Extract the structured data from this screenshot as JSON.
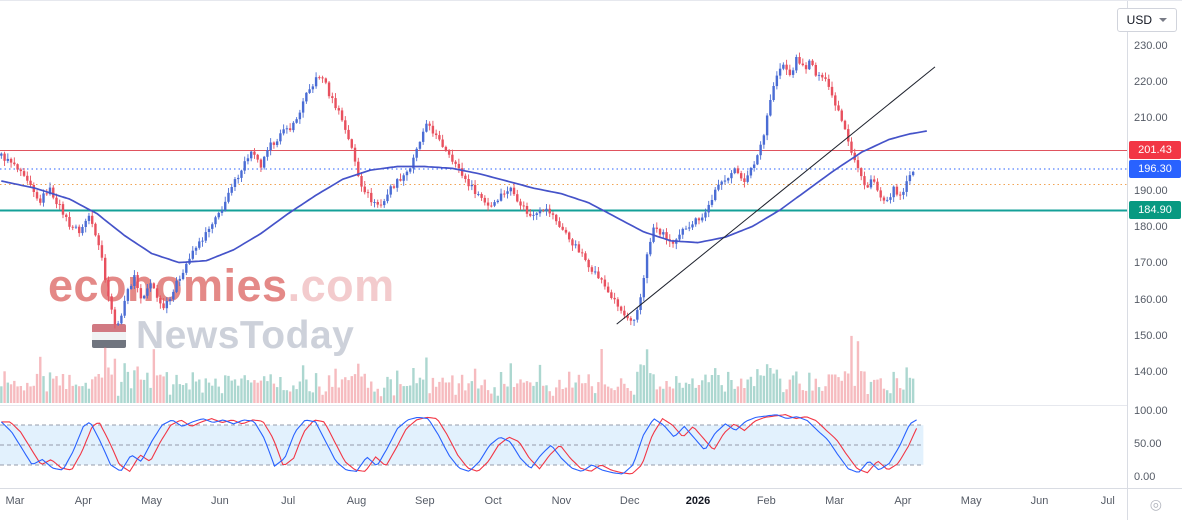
{
  "header": {
    "currency_label": "USD"
  },
  "watermark": {
    "brand": "economies",
    "domain": ".com",
    "subtitle": "NewsToday"
  },
  "price_axis": {
    "badges": [
      {
        "label": "201.43",
        "value": 201.43,
        "color": "#f23645"
      },
      {
        "label": "196.30",
        "value": 196.3,
        "color": "#2962ff"
      },
      {
        "label": "184.90",
        "value": 184.9,
        "color": "#089981"
      }
    ]
  },
  "chart_data": {
    "type": "candlestick",
    "title": "",
    "x_unit": "month_index_from_2025-03",
    "x_axis_labels": [
      "Mar",
      "Apr",
      "May",
      "Jun",
      "Jul",
      "Aug",
      "Sep",
      "Oct",
      "Nov",
      "Dec",
      "2026",
      "Feb",
      "Mar",
      "Apr",
      "May",
      "Jun",
      "Jul"
    ],
    "x_axis_emphasis_index": 10,
    "price_visible_range": [
      132,
      243
    ],
    "price_ticks": [
      {
        "v": 230,
        "label": "230.00"
      },
      {
        "v": 220,
        "label": "220.00"
      },
      {
        "v": 210,
        "label": "210.00"
      },
      {
        "v": 190,
        "label": "190.00"
      },
      {
        "v": 180,
        "label": "180.00"
      },
      {
        "v": 170,
        "label": "170.00"
      },
      {
        "v": 160,
        "label": "160.00"
      },
      {
        "v": 150,
        "label": "150.00"
      },
      {
        "v": 140,
        "label": "140.00"
      }
    ],
    "candles_extent_months": [
      -0.2,
      13.15
    ],
    "last_price": 196.3,
    "candle_up_color": "#4a6cd4",
    "candle_down_color": "#e8505e",
    "close_keypoints": [
      [
        -0.2,
        200
      ],
      [
        0,
        197
      ],
      [
        0.2,
        192
      ],
      [
        0.35,
        187
      ],
      [
        0.5,
        191
      ],
      [
        0.65,
        186
      ],
      [
        0.8,
        181
      ],
      [
        0.95,
        179
      ],
      [
        1.1,
        184
      ],
      [
        1.25,
        174
      ],
      [
        1.4,
        158
      ],
      [
        1.5,
        152
      ],
      [
        1.6,
        160
      ],
      [
        1.75,
        167
      ],
      [
        1.85,
        160
      ],
      [
        2,
        165
      ],
      [
        2.15,
        158
      ],
      [
        2.3,
        162
      ],
      [
        2.5,
        170
      ],
      [
        2.7,
        176
      ],
      [
        2.9,
        181
      ],
      [
        3.1,
        188
      ],
      [
        3.3,
        196
      ],
      [
        3.45,
        201
      ],
      [
        3.6,
        197
      ],
      [
        3.75,
        203
      ],
      [
        3.9,
        206
      ],
      [
        4.1,
        209
      ],
      [
        4.25,
        216
      ],
      [
        4.4,
        221
      ],
      [
        4.5,
        222
      ],
      [
        4.6,
        217
      ],
      [
        4.75,
        212
      ],
      [
        4.9,
        204
      ],
      [
        5.05,
        193
      ],
      [
        5.2,
        188
      ],
      [
        5.35,
        186
      ],
      [
        5.5,
        191
      ],
      [
        5.65,
        194
      ],
      [
        5.8,
        197
      ],
      [
        5.95,
        205
      ],
      [
        6.05,
        209
      ],
      [
        6.2,
        204
      ],
      [
        6.35,
        201
      ],
      [
        6.5,
        196
      ],
      [
        6.65,
        192
      ],
      [
        6.8,
        189
      ],
      [
        6.95,
        186
      ],
      [
        7.1,
        189
      ],
      [
        7.25,
        191
      ],
      [
        7.4,
        187
      ],
      [
        7.55,
        183
      ],
      [
        7.7,
        186
      ],
      [
        7.85,
        184
      ],
      [
        8,
        180
      ],
      [
        8.2,
        175
      ],
      [
        8.4,
        170
      ],
      [
        8.6,
        165
      ],
      [
        8.8,
        159
      ],
      [
        8.95,
        155
      ],
      [
        9.05,
        153
      ],
      [
        9.15,
        160
      ],
      [
        9.25,
        172
      ],
      [
        9.35,
        180
      ],
      [
        9.5,
        178
      ],
      [
        9.65,
        175
      ],
      [
        9.8,
        180
      ],
      [
        9.95,
        182
      ],
      [
        10.1,
        184
      ],
      [
        10.25,
        190
      ],
      [
        10.4,
        194
      ],
      [
        10.55,
        196
      ],
      [
        10.7,
        193
      ],
      [
        10.85,
        199
      ],
      [
        10.95,
        205
      ],
      [
        11.05,
        215
      ],
      [
        11.15,
        222
      ],
      [
        11.25,
        225
      ],
      [
        11.35,
        222
      ],
      [
        11.45,
        227
      ],
      [
        11.55,
        224
      ],
      [
        11.65,
        226
      ],
      [
        11.75,
        221
      ],
      [
        11.85,
        223
      ],
      [
        11.95,
        217
      ],
      [
        12.05,
        213
      ],
      [
        12.15,
        208
      ],
      [
        12.25,
        201
      ],
      [
        12.35,
        196
      ],
      [
        12.45,
        191
      ],
      [
        12.55,
        194
      ],
      [
        12.65,
        189
      ],
      [
        12.75,
        186
      ],
      [
        12.85,
        191
      ],
      [
        12.95,
        188
      ],
      [
        13.05,
        192
      ],
      [
        13.15,
        196.3
      ]
    ],
    "ma_line": {
      "name": "moving-average",
      "color": "#4553c9",
      "points": [
        [
          -0.2,
          193
        ],
        [
          0.3,
          191
        ],
        [
          0.8,
          188
        ],
        [
          1.2,
          184
        ],
        [
          1.6,
          178
        ],
        [
          2,
          173
        ],
        [
          2.4,
          170.5
        ],
        [
          2.8,
          171
        ],
        [
          3.2,
          174
        ],
        [
          3.6,
          178.5
        ],
        [
          4,
          184
        ],
        [
          4.4,
          189
        ],
        [
          4.8,
          193.5
        ],
        [
          5.2,
          196
        ],
        [
          5.6,
          197
        ],
        [
          6,
          197
        ],
        [
          6.4,
          196.5
        ],
        [
          6.8,
          195
        ],
        [
          7.2,
          193
        ],
        [
          7.6,
          191
        ],
        [
          8,
          189.5
        ],
        [
          8.4,
          187
        ],
        [
          8.8,
          183
        ],
        [
          9.2,
          179
        ],
        [
          9.6,
          176.5
        ],
        [
          10,
          176
        ],
        [
          10.4,
          177.5
        ],
        [
          10.8,
          180.5
        ],
        [
          11.2,
          185
        ],
        [
          11.6,
          190.5
        ],
        [
          12,
          196
        ],
        [
          12.4,
          201
        ],
        [
          12.8,
          204.5
        ],
        [
          13.1,
          206
        ],
        [
          13.35,
          206.8
        ]
      ]
    },
    "trendline": {
      "color": "#1e222d",
      "points": [
        [
          8.81,
          153.5
        ],
        [
          13.47,
          224.5
        ]
      ]
    },
    "levels": [
      {
        "name": "resistance-level",
        "value": 201.43,
        "color": "#e0545e",
        "style": "solid",
        "width": 1.3
      },
      {
        "name": "last-price-level",
        "value": 196.3,
        "color": "#2962ff",
        "style": "dotted",
        "width": 1.2
      },
      {
        "name": "pivot-level",
        "value": 192.0,
        "color": "#f2a454",
        "style": "dotted",
        "width": 1.2
      },
      {
        "name": "support-level",
        "value": 184.9,
        "color": "#14a098",
        "style": "solid",
        "width": 2
      }
    ],
    "volume": {
      "up_color": "rgba(104,183,169,0.55)",
      "down_color": "rgba(238,119,128,0.5)"
    },
    "oscillator": {
      "type": "stochastic",
      "range": [
        0,
        100
      ],
      "bands": [
        80,
        50,
        20
      ],
      "band_fill": [
        20,
        80
      ],
      "band_fill_color": "rgba(33,150,243,0.13)",
      "band_line_color": "#959cab",
      "k_color": "#2962ff",
      "d_color": "#f23645",
      "ticks": [
        {
          "v": 100,
          "label": "100.00"
        },
        {
          "v": 50,
          "label": "50.00"
        },
        {
          "v": 0,
          "label": "0.00"
        }
      ],
      "k_keypoints": [
        [
          -0.2,
          85
        ],
        [
          -0.05,
          70
        ],
        [
          0.1,
          45
        ],
        [
          0.25,
          20
        ],
        [
          0.4,
          28
        ],
        [
          0.55,
          15
        ],
        [
          0.7,
          12
        ],
        [
          0.85,
          40
        ],
        [
          1,
          78
        ],
        [
          1.1,
          85
        ],
        [
          1.25,
          55
        ],
        [
          1.4,
          20
        ],
        [
          1.55,
          10
        ],
        [
          1.7,
          35
        ],
        [
          1.85,
          25
        ],
        [
          2,
          55
        ],
        [
          2.15,
          80
        ],
        [
          2.3,
          88
        ],
        [
          2.45,
          78
        ],
        [
          2.6,
          85
        ],
        [
          2.75,
          90
        ],
        [
          2.9,
          84
        ],
        [
          3.05,
          88
        ],
        [
          3.2,
          82
        ],
        [
          3.35,
          88
        ],
        [
          3.5,
          86
        ],
        [
          3.65,
          60
        ],
        [
          3.8,
          18
        ],
        [
          3.95,
          30
        ],
        [
          4.1,
          70
        ],
        [
          4.25,
          88
        ],
        [
          4.4,
          85
        ],
        [
          4.55,
          55
        ],
        [
          4.7,
          25
        ],
        [
          4.85,
          12
        ],
        [
          5,
          10
        ],
        [
          5.15,
          32
        ],
        [
          5.3,
          18
        ],
        [
          5.45,
          45
        ],
        [
          5.6,
          75
        ],
        [
          5.75,
          88
        ],
        [
          5.9,
          92
        ],
        [
          6.05,
          90
        ],
        [
          6.2,
          65
        ],
        [
          6.35,
          35
        ],
        [
          6.5,
          15
        ],
        [
          6.65,
          10
        ],
        [
          6.8,
          25
        ],
        [
          6.95,
          50
        ],
        [
          7.1,
          62
        ],
        [
          7.25,
          55
        ],
        [
          7.4,
          30
        ],
        [
          7.55,
          14
        ],
        [
          7.7,
          35
        ],
        [
          7.85,
          50
        ],
        [
          8,
          30
        ],
        [
          8.15,
          15
        ],
        [
          8.3,
          10
        ],
        [
          8.45,
          20
        ],
        [
          8.6,
          12
        ],
        [
          8.75,
          8
        ],
        [
          8.9,
          6
        ],
        [
          9.05,
          20
        ],
        [
          9.2,
          65
        ],
        [
          9.35,
          90
        ],
        [
          9.5,
          80
        ],
        [
          9.65,
          62
        ],
        [
          9.8,
          78
        ],
        [
          9.95,
          60
        ],
        [
          10.1,
          42
        ],
        [
          10.25,
          68
        ],
        [
          10.4,
          82
        ],
        [
          10.55,
          72
        ],
        [
          10.7,
          86
        ],
        [
          10.85,
          92
        ],
        [
          11,
          94
        ],
        [
          11.15,
          96
        ],
        [
          11.3,
          90
        ],
        [
          11.45,
          93
        ],
        [
          11.6,
          87
        ],
        [
          11.75,
          72
        ],
        [
          11.9,
          58
        ],
        [
          12.05,
          35
        ],
        [
          12.2,
          14
        ],
        [
          12.35,
          8
        ],
        [
          12.5,
          26
        ],
        [
          12.65,
          12
        ],
        [
          12.8,
          22
        ],
        [
          12.95,
          48
        ],
        [
          13.1,
          82
        ],
        [
          13.2,
          88
        ]
      ]
    }
  }
}
